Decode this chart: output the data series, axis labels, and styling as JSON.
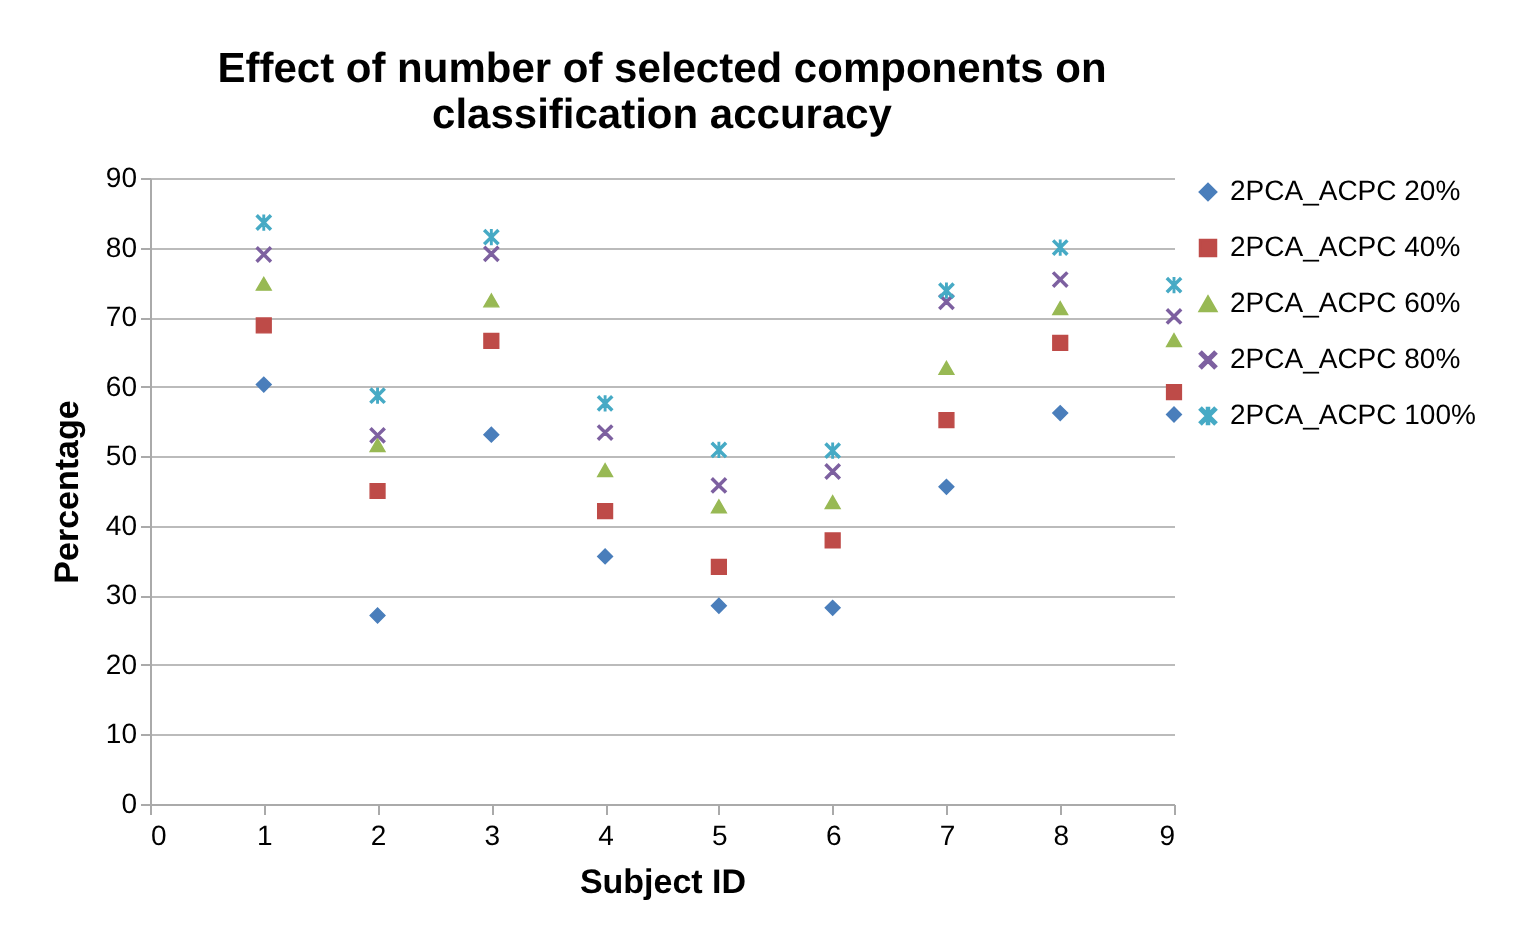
{
  "chart_data": {
    "type": "scatter",
    "title": "Effect of number of selected components on classification accuracy",
    "xlabel": "Subject ID",
    "ylabel": "Percentage",
    "x": [
      1,
      2,
      3,
      4,
      5,
      6,
      7,
      8,
      9
    ],
    "xlim": [
      0,
      9
    ],
    "xticks": [
      0,
      1,
      2,
      3,
      4,
      5,
      6,
      7,
      8,
      9
    ],
    "ylim": [
      0,
      90
    ],
    "yticks": [
      0,
      10,
      20,
      30,
      40,
      50,
      60,
      70,
      80,
      90
    ],
    "grid": "y",
    "legend": "right",
    "series": [
      {
        "name": "2PCA_ACPC 20%",
        "color": "#4a7ebb",
        "marker": "diamond",
        "values": [
          60.3,
          27.1,
          53.1,
          35.6,
          28.5,
          28.2,
          45.6,
          56.2,
          56.0
        ]
      },
      {
        "name": "2PCA_ACPC 40%",
        "color": "#be4b48",
        "marker": "square",
        "values": [
          68.8,
          45.0,
          66.6,
          42.1,
          34.1,
          37.9,
          55.2,
          66.3,
          59.2
        ]
      },
      {
        "name": "2PCA_ACPC 60%",
        "color": "#98b954",
        "marker": "triangle",
        "values": [
          74.8,
          51.6,
          72.4,
          48.0,
          42.8,
          43.4,
          62.7,
          71.3,
          66.7
        ]
      },
      {
        "name": "2PCA_ACPC 80%",
        "color": "#7d60a0",
        "marker": "cross",
        "values": [
          79.0,
          53.0,
          79.1,
          53.4,
          45.8,
          47.8,
          72.2,
          75.4,
          70.1
        ]
      },
      {
        "name": "2PCA_ACPC 100%",
        "color": "#46aac5",
        "marker": "star",
        "values": [
          83.6,
          58.7,
          81.5,
          57.6,
          50.9,
          50.8,
          73.8,
          80.0,
          74.6
        ]
      }
    ]
  }
}
